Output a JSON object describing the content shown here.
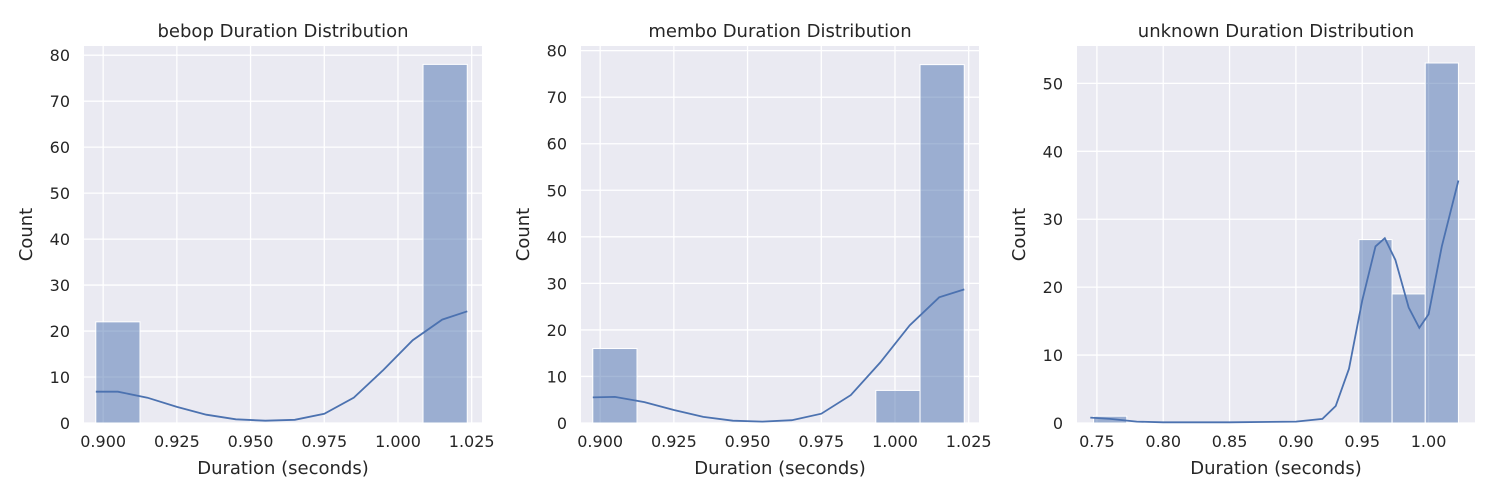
{
  "chart_data": [
    {
      "type": "histogram",
      "title": "bebop Duration Distribution",
      "xlabel": "Duration (seconds)",
      "ylabel": "Count",
      "xlim": [
        0.8935,
        1.0285
      ],
      "ylim": [
        0,
        82
      ],
      "xticks": [
        0.9,
        0.925,
        0.95,
        0.975,
        1.0,
        1.025
      ],
      "xtick_labels": [
        "0.900",
        "0.925",
        "0.950",
        "0.975",
        "1.000",
        "1.025"
      ],
      "yticks": [
        0,
        10,
        20,
        30,
        40,
        50,
        60,
        70,
        80
      ],
      "ytick_labels": [
        "0",
        "10",
        "20",
        "30",
        "40",
        "50",
        "60",
        "70",
        "80"
      ],
      "bins": [
        {
          "x0": 0.8975,
          "x1": 0.9125,
          "count": 22
        },
        {
          "x0": 1.0085,
          "x1": 1.0235,
          "count": 78
        }
      ],
      "kde": {
        "x": [
          0.8975,
          0.905,
          0.915,
          0.925,
          0.935,
          0.945,
          0.955,
          0.965,
          0.975,
          0.985,
          0.995,
          1.005,
          1.015,
          1.0235
        ],
        "y": [
          6.8,
          6.8,
          5.5,
          3.5,
          1.8,
          0.8,
          0.5,
          0.7,
          2.0,
          5.5,
          11.5,
          18.0,
          22.5,
          24.3
        ]
      },
      "grid": true
    },
    {
      "type": "histogram",
      "title": "membo Duration Distribution",
      "xlabel": "Duration (seconds)",
      "ylabel": "Count",
      "xlim": [
        0.8935,
        1.0285
      ],
      "ylim": [
        0,
        81
      ],
      "xticks": [
        0.9,
        0.925,
        0.95,
        0.975,
        1.0,
        1.025
      ],
      "xtick_labels": [
        "0.900",
        "0.925",
        "0.950",
        "0.975",
        "1.000",
        "1.025"
      ],
      "yticks": [
        0,
        10,
        20,
        30,
        40,
        50,
        60,
        70,
        80
      ],
      "ytick_labels": [
        "0",
        "10",
        "20",
        "30",
        "40",
        "50",
        "60",
        "70",
        "80"
      ],
      "bins": [
        {
          "x0": 0.8975,
          "x1": 0.9125,
          "count": 16
        },
        {
          "x0": 0.9935,
          "x1": 1.0085,
          "count": 7
        },
        {
          "x0": 1.0085,
          "x1": 1.0235,
          "count": 77
        }
      ],
      "kde": {
        "x": [
          0.8975,
          0.905,
          0.915,
          0.925,
          0.935,
          0.945,
          0.955,
          0.965,
          0.975,
          0.985,
          0.995,
          1.005,
          1.015,
          1.0235
        ],
        "y": [
          5.5,
          5.6,
          4.5,
          2.8,
          1.3,
          0.5,
          0.3,
          0.6,
          2.0,
          6.0,
          13.0,
          21.0,
          27.0,
          28.7
        ]
      },
      "grid": true
    },
    {
      "type": "histogram",
      "title": "unknown Duration Distribution",
      "xlabel": "Duration (seconds)",
      "ylabel": "Count",
      "xlim": [
        0.735,
        1.035
      ],
      "ylim": [
        0,
        55.5
      ],
      "xticks": [
        0.75,
        0.8,
        0.85,
        0.9,
        0.95,
        1.0
      ],
      "xtick_labels": [
        "0.75",
        "0.80",
        "0.85",
        "0.90",
        "0.95",
        "1.00"
      ],
      "yticks": [
        0,
        10,
        20,
        30,
        40,
        50
      ],
      "ytick_labels": [
        "0",
        "10",
        "20",
        "30",
        "40",
        "50"
      ],
      "bins": [
        {
          "x0": 0.7475,
          "x1": 0.7725,
          "count": 1
        },
        {
          "x0": 0.9475,
          "x1": 0.9725,
          "count": 27
        },
        {
          "x0": 0.9725,
          "x1": 0.9975,
          "count": 19
        },
        {
          "x0": 0.9975,
          "x1": 1.0225,
          "count": 53
        }
      ],
      "kde": {
        "x": [
          0.745,
          0.76,
          0.78,
          0.8,
          0.85,
          0.9,
          0.92,
          0.93,
          0.94,
          0.95,
          0.96,
          0.967,
          0.975,
          0.985,
          0.993,
          1.0,
          1.01,
          1.0225
        ],
        "y": [
          0.8,
          0.6,
          0.2,
          0.1,
          0.1,
          0.2,
          0.6,
          2.5,
          8.0,
          18.0,
          26.0,
          27.2,
          24.0,
          17.0,
          14.0,
          16.0,
          26.0,
          35.7
        ]
      },
      "grid": true
    }
  ]
}
